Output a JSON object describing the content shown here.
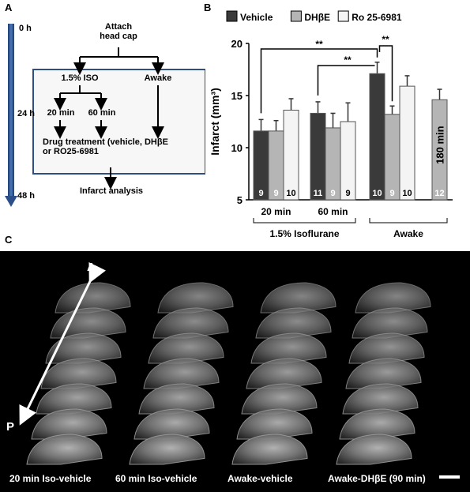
{
  "panel_labels": {
    "a": "A",
    "b": "B",
    "c": "C"
  },
  "panel_a": {
    "timeline": [
      "0 h",
      "24 h",
      "48 h"
    ],
    "attach": [
      "Attach",
      "head cap"
    ],
    "iso": "1.5% ISO",
    "awake": "Awake",
    "min20": "20 min",
    "min60": "60 min",
    "drug": [
      "Drug treatment (vehicle, DHβE",
      "or RO25-6981"
    ],
    "infarct": "Infarct analysis"
  },
  "chart_data": {
    "type": "bar",
    "legend": [
      "Vehicle",
      "DHβE",
      "Ro 25-6981"
    ],
    "colors": [
      "#3a3a3a",
      "#b5b5b5",
      "#f4f4f4"
    ],
    "ylabel": "Infarct (mm³)",
    "ylim": [
      5,
      20
    ],
    "yticks": [
      5,
      10,
      15,
      20
    ],
    "groups": [
      {
        "label": "20 min",
        "bars": [
          {
            "value": 11.6,
            "err": 1.1,
            "n": "9"
          },
          {
            "value": 11.6,
            "err": 1.0,
            "n": "9"
          },
          {
            "value": 13.6,
            "err": 1.1,
            "n": "10"
          }
        ]
      },
      {
        "label": "60 min",
        "bars": [
          {
            "value": 13.3,
            "err": 1.1,
            "n": "11"
          },
          {
            "value": 11.9,
            "err": 1.4,
            "n": "9"
          },
          {
            "value": 12.5,
            "err": 1.8,
            "n": "9"
          }
        ]
      },
      {
        "label": "",
        "bars": [
          {
            "value": 17.1,
            "err": 1.1,
            "n": "10"
          },
          {
            "value": 13.2,
            "err": 0.8,
            "n": "9"
          },
          {
            "value": 15.9,
            "err": 1.0,
            "n": "10"
          }
        ]
      },
      {
        "label": "",
        "bars": [
          {
            "value": 14.6,
            "err": 1.0,
            "n": "12",
            "note": "180 min",
            "series": 1
          }
        ]
      }
    ],
    "brackets": [
      "1.5% Isoflurane",
      "Awake"
    ],
    "significance": "**"
  },
  "panel_c": {
    "axis_a": "A",
    "axis_p": "P",
    "captions": [
      "20 min Iso-vehicle",
      "60 min Iso-vehicle",
      "Awake-vehicle",
      "Awake-DHβE (90 min)"
    ]
  }
}
